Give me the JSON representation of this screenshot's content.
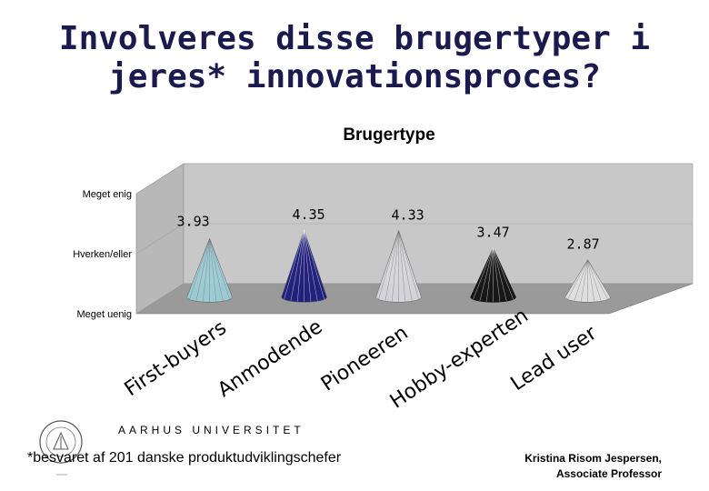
{
  "slide": {
    "title_line1": "Involveres disse brugertyper i",
    "title_line2": "jeres* innovationsproces?",
    "university": "AARHUS UNIVERSITET",
    "footnote": "*besvaret af 201 danske produktudviklingschefer",
    "author_name": "Kristina Risom Jespersen,",
    "author_title": "Associate Professor"
  },
  "chart_data": {
    "type": "bar",
    "bar_shape": "3d-cone",
    "title": "Brugertype",
    "categories": [
      "First-buyers",
      "Anmodende",
      "Pioneeren",
      "Hobby-experten",
      "Lead user"
    ],
    "values": [
      3.93,
      4.35,
      4.33,
      3.47,
      2.87
    ],
    "value_labels": [
      "3.93",
      "4.35",
      "4.33",
      "3.47",
      "2.87"
    ],
    "ylim": [
      1,
      7
    ],
    "yticks": [
      {
        "value": 7,
        "label": "Meget enig"
      },
      {
        "value": 4,
        "label": "Hverken/eller"
      },
      {
        "value": 1,
        "label": "Meget uenig"
      }
    ],
    "colors": [
      "#9dcdd6",
      "#1b1b7a",
      "#d8d8dc",
      "#111111",
      "#e2e2e2"
    ],
    "wall_color": "#c8c8c8",
    "floor_color": "#9a9a9a",
    "grid": true
  }
}
